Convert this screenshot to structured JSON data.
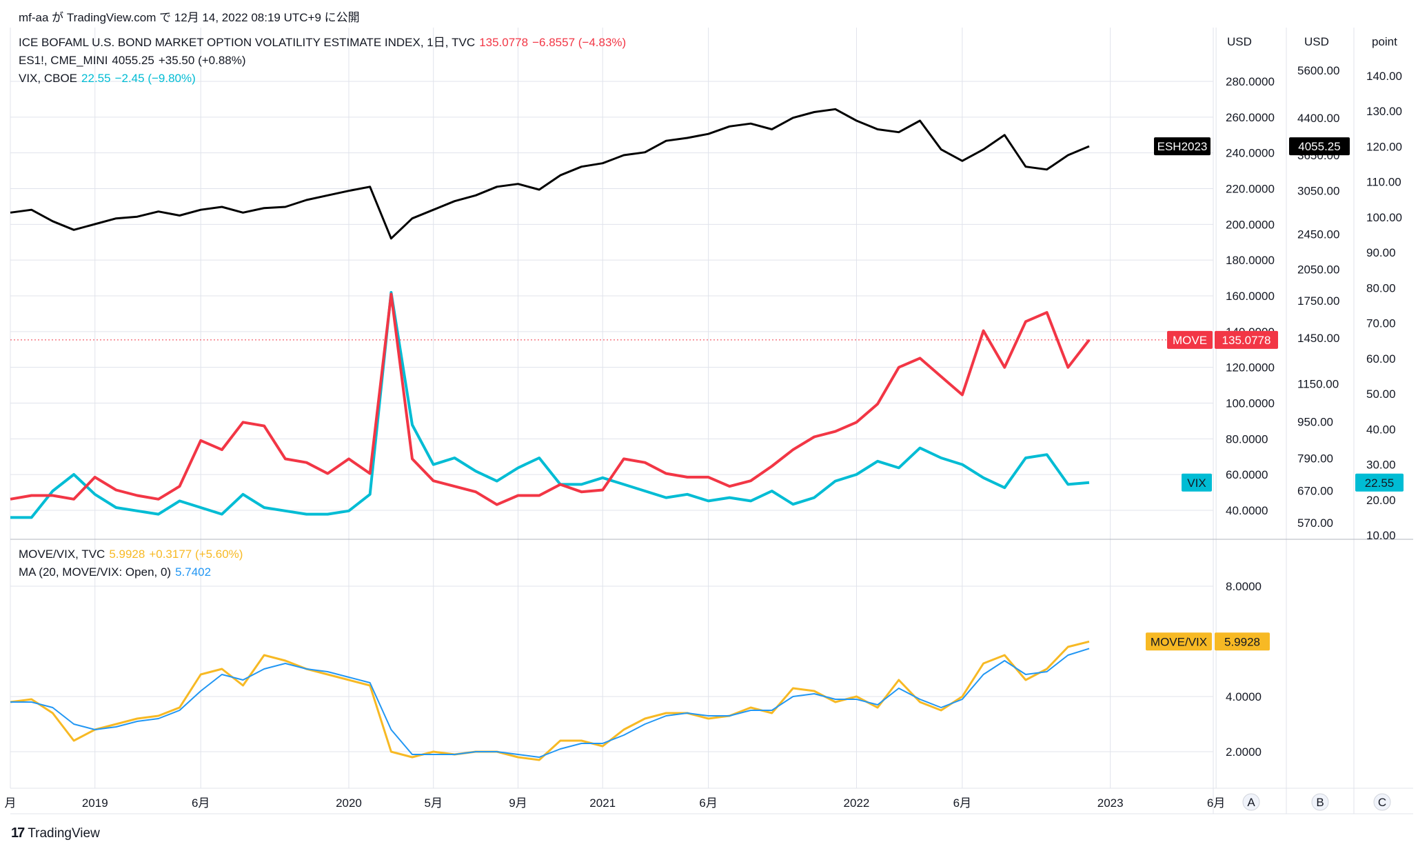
{
  "header": {
    "text": "mf-aa が TradingView.com で 12月 14, 2022 08:19 UTC+9 に公開"
  },
  "legend_top": {
    "line1": {
      "title": "ICE BOFAML U.S. BOND MARKET OPTION VOLATILITY ESTIMATE INDEX, 1日, TVC",
      "value": "135.0778",
      "change": "−6.8557 (−4.83%)"
    },
    "line2": {
      "title": "ES1!, CME_MINI",
      "value": "4055.25",
      "change": "+35.50 (+0.88%)"
    },
    "line3": {
      "title": "VIX, CBOE",
      "value": "22.55",
      "change": "−2.45 (−9.80%)"
    }
  },
  "legend_bottom": {
    "line1": {
      "title": "MOVE/VIX, TVC",
      "value": "5.9928",
      "change": "+0.3177 (+5.60%)"
    },
    "line2": {
      "title": "MA (20, MOVE/VIX: Open, 0)",
      "value": "5.7402"
    }
  },
  "colors": {
    "es": "#000000",
    "move": "#f23645",
    "vix": "#00bcd4",
    "ratio": "#f7b924",
    "ma": "#2196f3",
    "grid": "#e0e3eb"
  },
  "chart_data": [
    {
      "type": "line",
      "title": "ES1! / MOVE / VIX",
      "x": [
        "2018-09",
        "2018-10",
        "2018-11",
        "2018-12",
        "2019-01",
        "2019-02",
        "2019-03",
        "2019-04",
        "2019-05",
        "2019-06",
        "2019-07",
        "2019-08",
        "2019-09",
        "2019-10",
        "2019-11",
        "2019-12",
        "2020-01",
        "2020-02",
        "2020-03",
        "2020-04",
        "2020-05",
        "2020-06",
        "2020-07",
        "2020-08",
        "2020-09",
        "2020-10",
        "2020-11",
        "2020-12",
        "2021-01",
        "2021-02",
        "2021-03",
        "2021-04",
        "2021-05",
        "2021-06",
        "2021-07",
        "2021-08",
        "2021-09",
        "2021-10",
        "2021-11",
        "2021-12",
        "2022-01",
        "2022-02",
        "2022-03",
        "2022-04",
        "2022-05",
        "2022-06",
        "2022-07",
        "2022-08",
        "2022-09",
        "2022-10",
        "2022-11",
        "2022-12"
      ],
      "series": [
        {
          "name": "ES1!",
          "axis": "USD (right-middle)",
          "values": [
            2900,
            2950,
            2750,
            2600,
            2700,
            2800,
            2830,
            2920,
            2850,
            2950,
            3000,
            2900,
            2980,
            3000,
            3120,
            3200,
            3280,
            3350,
            2450,
            2800,
            2950,
            3100,
            3200,
            3350,
            3400,
            3300,
            3550,
            3700,
            3760,
            3900,
            3950,
            4150,
            4200,
            4270,
            4400,
            4450,
            4350,
            4550,
            4650,
            4700,
            4500,
            4350,
            4300,
            4500,
            4000,
            3800,
            4000,
            4250,
            3700,
            3650,
            3900,
            4055
          ]
        },
        {
          "name": "MOVE",
          "axis": "USD (right-left)",
          "values": [
            48,
            50,
            50,
            48,
            60,
            53,
            50,
            48,
            55,
            80,
            75,
            90,
            88,
            70,
            68,
            62,
            70,
            62,
            160,
            70,
            58,
            55,
            52,
            45,
            50,
            50,
            56,
            52,
            53,
            70,
            68,
            62,
            60,
            60,
            55,
            58,
            66,
            75,
            82,
            85,
            90,
            100,
            120,
            125,
            115,
            105,
            140,
            120,
            145,
            150,
            120,
            135
          ]
        },
        {
          "name": "VIX",
          "axis": "point",
          "values": [
            12,
            12,
            20,
            25,
            19,
            15,
            14,
            13,
            17,
            15,
            13,
            19,
            15,
            14,
            13,
            13,
            14,
            19,
            80,
            40,
            28,
            30,
            26,
            23,
            27,
            30,
            22,
            22,
            24,
            22,
            20,
            18,
            19,
            17,
            18,
            17,
            20,
            16,
            18,
            23,
            25,
            29,
            27,
            33,
            30,
            28,
            24,
            21,
            30,
            31,
            22,
            22.55
          ]
        }
      ],
      "axes": {
        "move_axis": {
          "label": "USD",
          "ticks": [
            "280.0000",
            "260.0000",
            "240.0000",
            "220.0000",
            "200.0000",
            "180.0000",
            "160.0000",
            "140.0000",
            "120.0000",
            "100.0000",
            "80.0000",
            "60.0000",
            "40.0000"
          ]
        },
        "es_axis": {
          "label": "USD",
          "ticks": [
            "5600.00",
            "4400.00",
            "3650.00",
            "3050.00",
            "2450.00",
            "2050.00",
            "1750.00",
            "1450.00",
            "1150.00",
            "950.00",
            "790.00",
            "670.00",
            "570.00"
          ]
        },
        "vix_axis": {
          "label": "point",
          "ticks": [
            "140.00",
            "130.00",
            "120.00",
            "110.00",
            "100.00",
            "90.00",
            "80.00",
            "70.00",
            "60.00",
            "50.00",
            "40.00",
            "30.00",
            "20.00",
            "10.00"
          ]
        }
      },
      "tags": {
        "es": {
          "label": "ESH2023",
          "value": "4055.25"
        },
        "move": {
          "label": "MOVE",
          "value": "135.0778"
        },
        "vix": {
          "label": "VIX",
          "value": "22.55"
        }
      }
    },
    {
      "type": "line",
      "title": "MOVE/VIX",
      "x": [
        "2018-09",
        "2018-10",
        "2018-11",
        "2018-12",
        "2019-01",
        "2019-02",
        "2019-03",
        "2019-04",
        "2019-05",
        "2019-06",
        "2019-07",
        "2019-08",
        "2019-09",
        "2019-10",
        "2019-11",
        "2019-12",
        "2020-01",
        "2020-02",
        "2020-03",
        "2020-04",
        "2020-05",
        "2020-06",
        "2020-07",
        "2020-08",
        "2020-09",
        "2020-10",
        "2020-11",
        "2020-12",
        "2021-01",
        "2021-02",
        "2021-03",
        "2021-04",
        "2021-05",
        "2021-06",
        "2021-07",
        "2021-08",
        "2021-09",
        "2021-10",
        "2021-11",
        "2021-12",
        "2022-01",
        "2022-02",
        "2022-03",
        "2022-04",
        "2022-05",
        "2022-06",
        "2022-07",
        "2022-08",
        "2022-09",
        "2022-10",
        "2022-11",
        "2022-12"
      ],
      "series": [
        {
          "name": "MOVE/VIX",
          "values": [
            3.8,
            3.9,
            3.4,
            2.4,
            2.8,
            3.0,
            3.2,
            3.3,
            3.6,
            4.8,
            5.0,
            4.4,
            5.5,
            5.3,
            5.0,
            4.8,
            4.6,
            4.4,
            2.0,
            1.8,
            2.0,
            1.9,
            2.0,
            2.0,
            1.8,
            1.7,
            2.4,
            2.4,
            2.2,
            2.8,
            3.2,
            3.4,
            3.4,
            3.2,
            3.3,
            3.6,
            3.4,
            4.3,
            4.2,
            3.8,
            4.0,
            3.6,
            4.6,
            3.8,
            3.5,
            4.0,
            5.2,
            5.5,
            4.6,
            5.0,
            5.8,
            5.9928
          ]
        },
        {
          "name": "MA (20, MOVE/VIX: Open, 0)",
          "values": [
            3.8,
            3.8,
            3.6,
            3.0,
            2.8,
            2.9,
            3.1,
            3.2,
            3.5,
            4.2,
            4.8,
            4.6,
            5.0,
            5.2,
            5.0,
            4.9,
            4.7,
            4.5,
            2.8,
            1.9,
            1.9,
            1.9,
            2.0,
            2.0,
            1.9,
            1.8,
            2.1,
            2.3,
            2.3,
            2.6,
            3.0,
            3.3,
            3.4,
            3.3,
            3.3,
            3.5,
            3.5,
            4.0,
            4.1,
            3.9,
            3.9,
            3.7,
            4.3,
            3.9,
            3.6,
            3.9,
            4.8,
            5.3,
            4.8,
            4.9,
            5.5,
            5.7402
          ]
        }
      ],
      "axis": {
        "ticks": [
          "8.0000",
          "4.0000",
          "2.0000"
        ]
      },
      "tag": {
        "label": "MOVE/VIX",
        "value": "5.9928"
      }
    }
  ],
  "time_axis": {
    "labels": [
      "月",
      "2019",
      "6月",
      "2020",
      "5月",
      "9月",
      "2021",
      "6月",
      "2022",
      "6月",
      "2023",
      "6月"
    ]
  },
  "scale_buttons": [
    "A",
    "B",
    "C"
  ],
  "brand": {
    "name": "TradingView"
  }
}
